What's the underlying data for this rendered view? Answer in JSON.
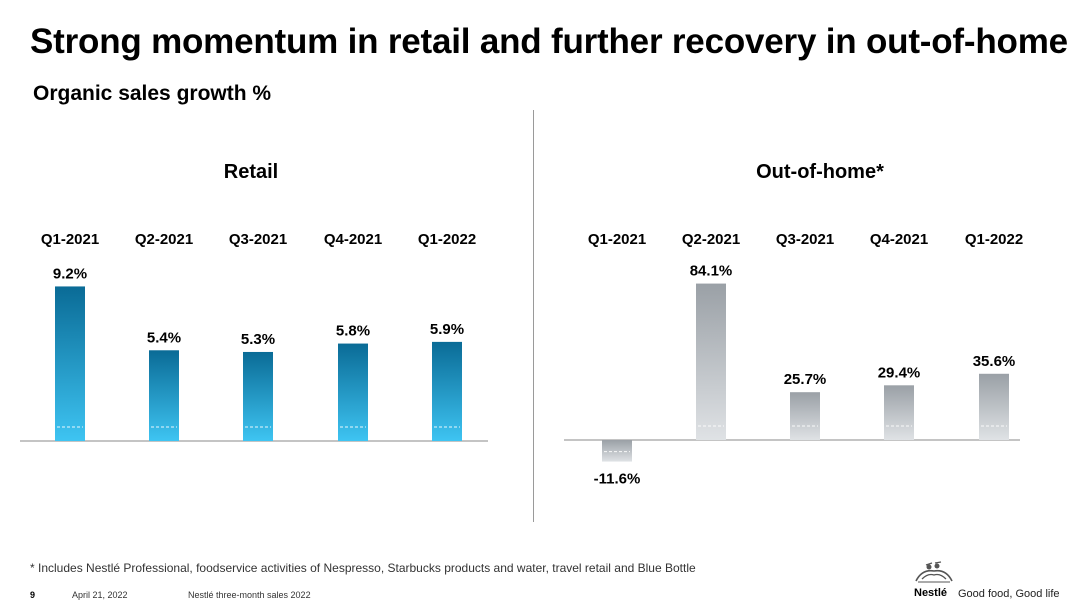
{
  "title": "Strong momentum in retail and further recovery in out-of-home",
  "subtitle": "Organic sales growth %",
  "chart_data": [
    {
      "type": "bar",
      "title": "Retail",
      "categories": [
        "Q1-2021",
        "Q2-2021",
        "Q3-2021",
        "Q4-2021",
        "Q1-2022"
      ],
      "values": [
        9.2,
        5.4,
        5.3,
        5.8,
        5.9
      ],
      "labels": [
        "9.2%",
        "5.4%",
        "5.3%",
        "5.8%",
        "5.9%"
      ],
      "colors": {
        "top": "#0a6b96",
        "bottom": "#3ec4f2"
      }
    },
    {
      "type": "bar",
      "title": "Out-of-home*",
      "categories": [
        "Q1-2021",
        "Q2-2021",
        "Q3-2021",
        "Q4-2021",
        "Q1-2022"
      ],
      "values": [
        -11.6,
        84.1,
        25.7,
        29.4,
        35.6
      ],
      "labels": [
        "-11.6%",
        "84.1%",
        "25.7%",
        "29.4%",
        "35.6%"
      ],
      "colors": {
        "top": "#9aa0a6",
        "bottom": "#dfe2e5"
      }
    }
  ],
  "footnote": "* Includes Nestlé Professional, foodservice activities of Nespresso, Starbucks products and water, travel retail and Blue Bottle",
  "footer": {
    "page": "9",
    "date": "April 21, 2022",
    "document": "Nestlé three-month sales 2022",
    "brand": "Nestlé",
    "tagline": "Good food, Good life"
  }
}
